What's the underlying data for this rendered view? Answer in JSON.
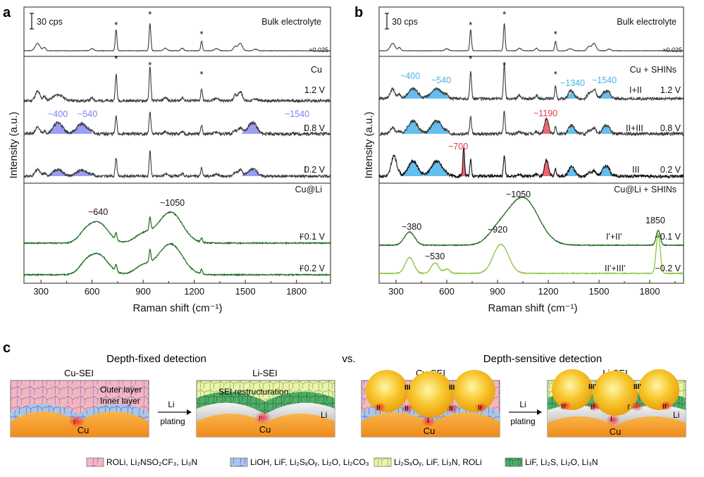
{
  "panels": {
    "a_letter": "a",
    "b_letter": "b",
    "c_letter": "c"
  },
  "chart_data": [
    {
      "type": "line",
      "panel": "a",
      "xlabel": "Raman shift (cm⁻¹)",
      "ylabel": "Intensity (a.u.)",
      "xlim": [
        200,
        2000
      ],
      "xticks": [
        "300",
        "600",
        "900",
        "1200",
        "1500",
        "1800"
      ],
      "scale_bar": "30 cps",
      "scale_factor": "×0.025",
      "series": [
        {
          "name": "Bulk electrolyte",
          "tag": "",
          "voltage": "",
          "peaks_star": [
            741,
            940,
            1243
          ]
        },
        {
          "name": "Cu",
          "tag": "",
          "voltage": "1.2 V",
          "peaks_star": [
            741,
            940,
            1243
          ]
        },
        {
          "name": "Cu 0.8 V",
          "tag": "I",
          "voltage": "0.8 V",
          "shaded": [
            [
              350,
              450
            ],
            [
              480,
              590
            ],
            [
              1500,
              1590
            ]
          ]
        },
        {
          "name": "Cu 0.2 V",
          "tag": "I",
          "voltage": "0.2 V",
          "shaded": [
            [
              350,
              450
            ],
            [
              480,
              590
            ],
            [
              1500,
              1590
            ]
          ]
        },
        {
          "name": "Cu@Li",
          "tag": "I'",
          "voltage": "−0.1 V"
        },
        {
          "name": "Cu@Li -0.2",
          "tag": "I'",
          "voltage": "−0.2 V"
        }
      ],
      "annotations": [
        "~400",
        "~540",
        "~1540",
        "~640",
        "~1050"
      ],
      "stars": [
        "*",
        "*",
        "*",
        "*",
        "*",
        "*"
      ]
    },
    {
      "type": "line",
      "panel": "b",
      "xlabel": "Raman shift (cm⁻¹)",
      "ylabel": "Intensity (a.u.)",
      "xlim": [
        200,
        2000
      ],
      "xticks": [
        "300",
        "600",
        "900",
        "1200",
        "1500",
        "1800"
      ],
      "scale_bar": "30 cps",
      "scale_factor": "×0.025",
      "series": [
        {
          "name": "Bulk electrolyte",
          "tag": "",
          "voltage": ""
        },
        {
          "name": "Cu + SHINs",
          "tag": "I+II",
          "voltage": "1.2 V"
        },
        {
          "name": "Cu + SHINs 0.8",
          "tag": "II+III",
          "voltage": "0.8 V"
        },
        {
          "name": "Cu + SHINs 0.2",
          "tag": "III",
          "voltage": "0.2 V"
        },
        {
          "name": "Cu@Li + SHINs",
          "tag": "I'+II'",
          "voltage": "−0.1 V"
        },
        {
          "name": "Cu@Li + SHINs -0.2",
          "tag": "II'+III'",
          "voltage": "−0.2 V"
        }
      ],
      "annotations": [
        "~400",
        "~540",
        "~1340",
        "~1540",
        "~1190",
        "~700",
        "~1050",
        "~380",
        "~530",
        "~920",
        "1850"
      ]
    }
  ],
  "labels": {
    "bulk": "Bulk electrolyte",
    "cu": "Cu",
    "culi": "Cu@Li",
    "cushins": "Cu + SHINs",
    "culishins": "Cu@Li + SHINs",
    "v12": "1.2 V",
    "v08": "0.8 V",
    "v02": "0.2 V",
    "vm01": "−0.1 V",
    "vm02": "−0.2 V",
    "tag_I": "I",
    "tag_Ip": "I'",
    "tag_I_II": "I+II",
    "tag_II_III": "II+III",
    "tag_III": "III",
    "tag_Ip_IIp": "I'+II'",
    "tag_IIp_IIIp": "II'+III'",
    "ann_400": "~400",
    "ann_540": "~540",
    "ann_1540": "~1540",
    "ann_640": "~640",
    "ann_1050": "~1050",
    "ann_1340": "~1340",
    "ann_1190": "~1190",
    "ann_700": "~700",
    "ann_380": "~380",
    "ann_530": "~530",
    "ann_920": "~920",
    "ann_1850": "1850",
    "scale": "30 cps",
    "factor": "×0.025",
    "star": "*"
  },
  "diagram": {
    "title_left": "Depth-fixed detection",
    "vs": "vs.",
    "title_right": "Depth-sensitive detection",
    "cu_sei": "Cu-SEI",
    "li_sei": "Li-SEI",
    "outer_layer": "Outer layer",
    "inner_layer": "Inner layer",
    "sei_restructuration": "SEI restructuration",
    "li_plating_1": "Li",
    "li_plating_2": "plating",
    "cu": "Cu",
    "li": "Li",
    "marks": {
      "I": "I",
      "II": "II",
      "III": "III",
      "Ip": "I'",
      "IIp": "II'",
      "IIIp": "III'"
    }
  },
  "legend": [
    {
      "text": "ROLi, Li₂NSO₂CF₃, Li₃N",
      "color": "#f1b2bd"
    },
    {
      "text": "LiOH, LiF, Li₂SₓOᵧ, Li₂O, Li₂CO₃",
      "color": "#a9c6ea"
    },
    {
      "text": "Li₂SₓOᵧ, LiF, Li₃N, ROLi",
      "color": "#e7f4a8"
    },
    {
      "text": "LiF, Li₂S, Li₂O,  Li₃N",
      "color": "#4fae68"
    }
  ],
  "colors": {
    "black_trace": "#3a3a3a",
    "green_dark": "#1d6b1d",
    "green_light": "#8cc63f",
    "blue_fill": "#4ab3ea",
    "purple_fill": "#8a8df3",
    "red_fill": "#ef4a5a"
  }
}
